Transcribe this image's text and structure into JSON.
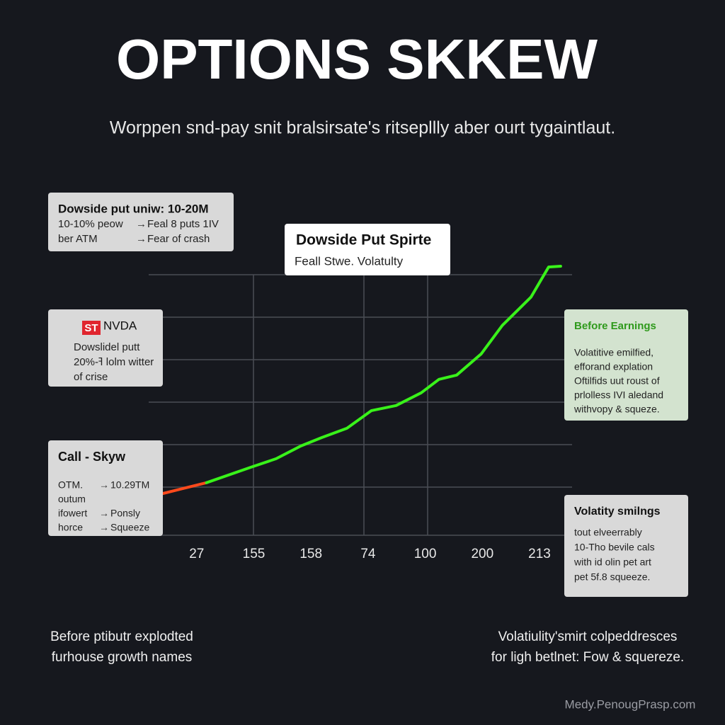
{
  "chart_data": {
    "type": "line",
    "title": "OPTIONS SKKEW",
    "subtitle": "Worppen snd-pay snit bralsirsate's ritsepllly aber ourt tygaintlaut.",
    "categories": [
      "27",
      "155",
      "158",
      "74",
      "100",
      "200",
      "213"
    ],
    "xlim": [
      -0.84,
      6.57
    ],
    "ylim": [
      0,
      110
    ],
    "grid": true,
    "series": [
      {
        "color": "#ff4a1c",
        "x": [
          -0.59,
          0.17
        ],
        "values": [
          17.3,
          21.6
        ]
      },
      {
        "color": "#39f21a",
        "x": [
          0.17,
          0.95,
          1.39,
          1.82,
          2.19,
          2.63,
          3.06,
          3.49,
          3.93,
          4.24,
          4.55,
          4.98,
          5.35,
          5.85,
          6.16,
          6.37
        ],
        "values": [
          21.6,
          27.8,
          31.2,
          36.3,
          39.7,
          43.4,
          50.5,
          52.5,
          57.6,
          63,
          64.7,
          73.2,
          84.6,
          95.9,
          108,
          108.3
        ]
      }
    ],
    "annotations": [
      {
        "title": "Dowside put uniw: 10-20M",
        "lines": [
          "10-10% pеow",
          "ber ATM"
        ],
        "right": [
          "Feal 8 puts 1IV",
          "Fear of crash"
        ]
      },
      {
        "title": "Dowside Put Spirte",
        "lines": [
          "Feall Stwe. Volatulty"
        ]
      },
      {
        "badge": "ST",
        "title": "NVDA",
        "lines": [
          "Dowslidel putt",
          "ߔ-20% lolm witter",
          "of crise"
        ]
      },
      {
        "title": "Call - Skyw",
        "lines": [
          "OTM.",
          "outum",
          "ifowert",
          "horce"
        ],
        "right": [
          "10.29TM",
          "",
          "Ponsly",
          "Squeeze"
        ]
      },
      {
        "title": "Before Earnings",
        "lines": [
          "Volatitive emilfied,",
          "efforand explation",
          "Oftilfids uut roust of",
          "prlolless IVI aledand",
          "withvopy & squeze."
        ]
      },
      {
        "title": "Volatity smilngs",
        "lines": [
          "tout elveerrably",
          "10-Tho bevile cals",
          "with id olin pet art",
          "pet 5f.8 squeeze."
        ]
      }
    ],
    "footnotes": [
      [
        "Before ptibutr explodted",
        "furhouse growth names"
      ],
      [
        "Volatiulity'smirt colpeddresces",
        "for ligh betlnet: Fow & squereze."
      ]
    ],
    "watermark": "Medy.PenougPrasp.com"
  }
}
